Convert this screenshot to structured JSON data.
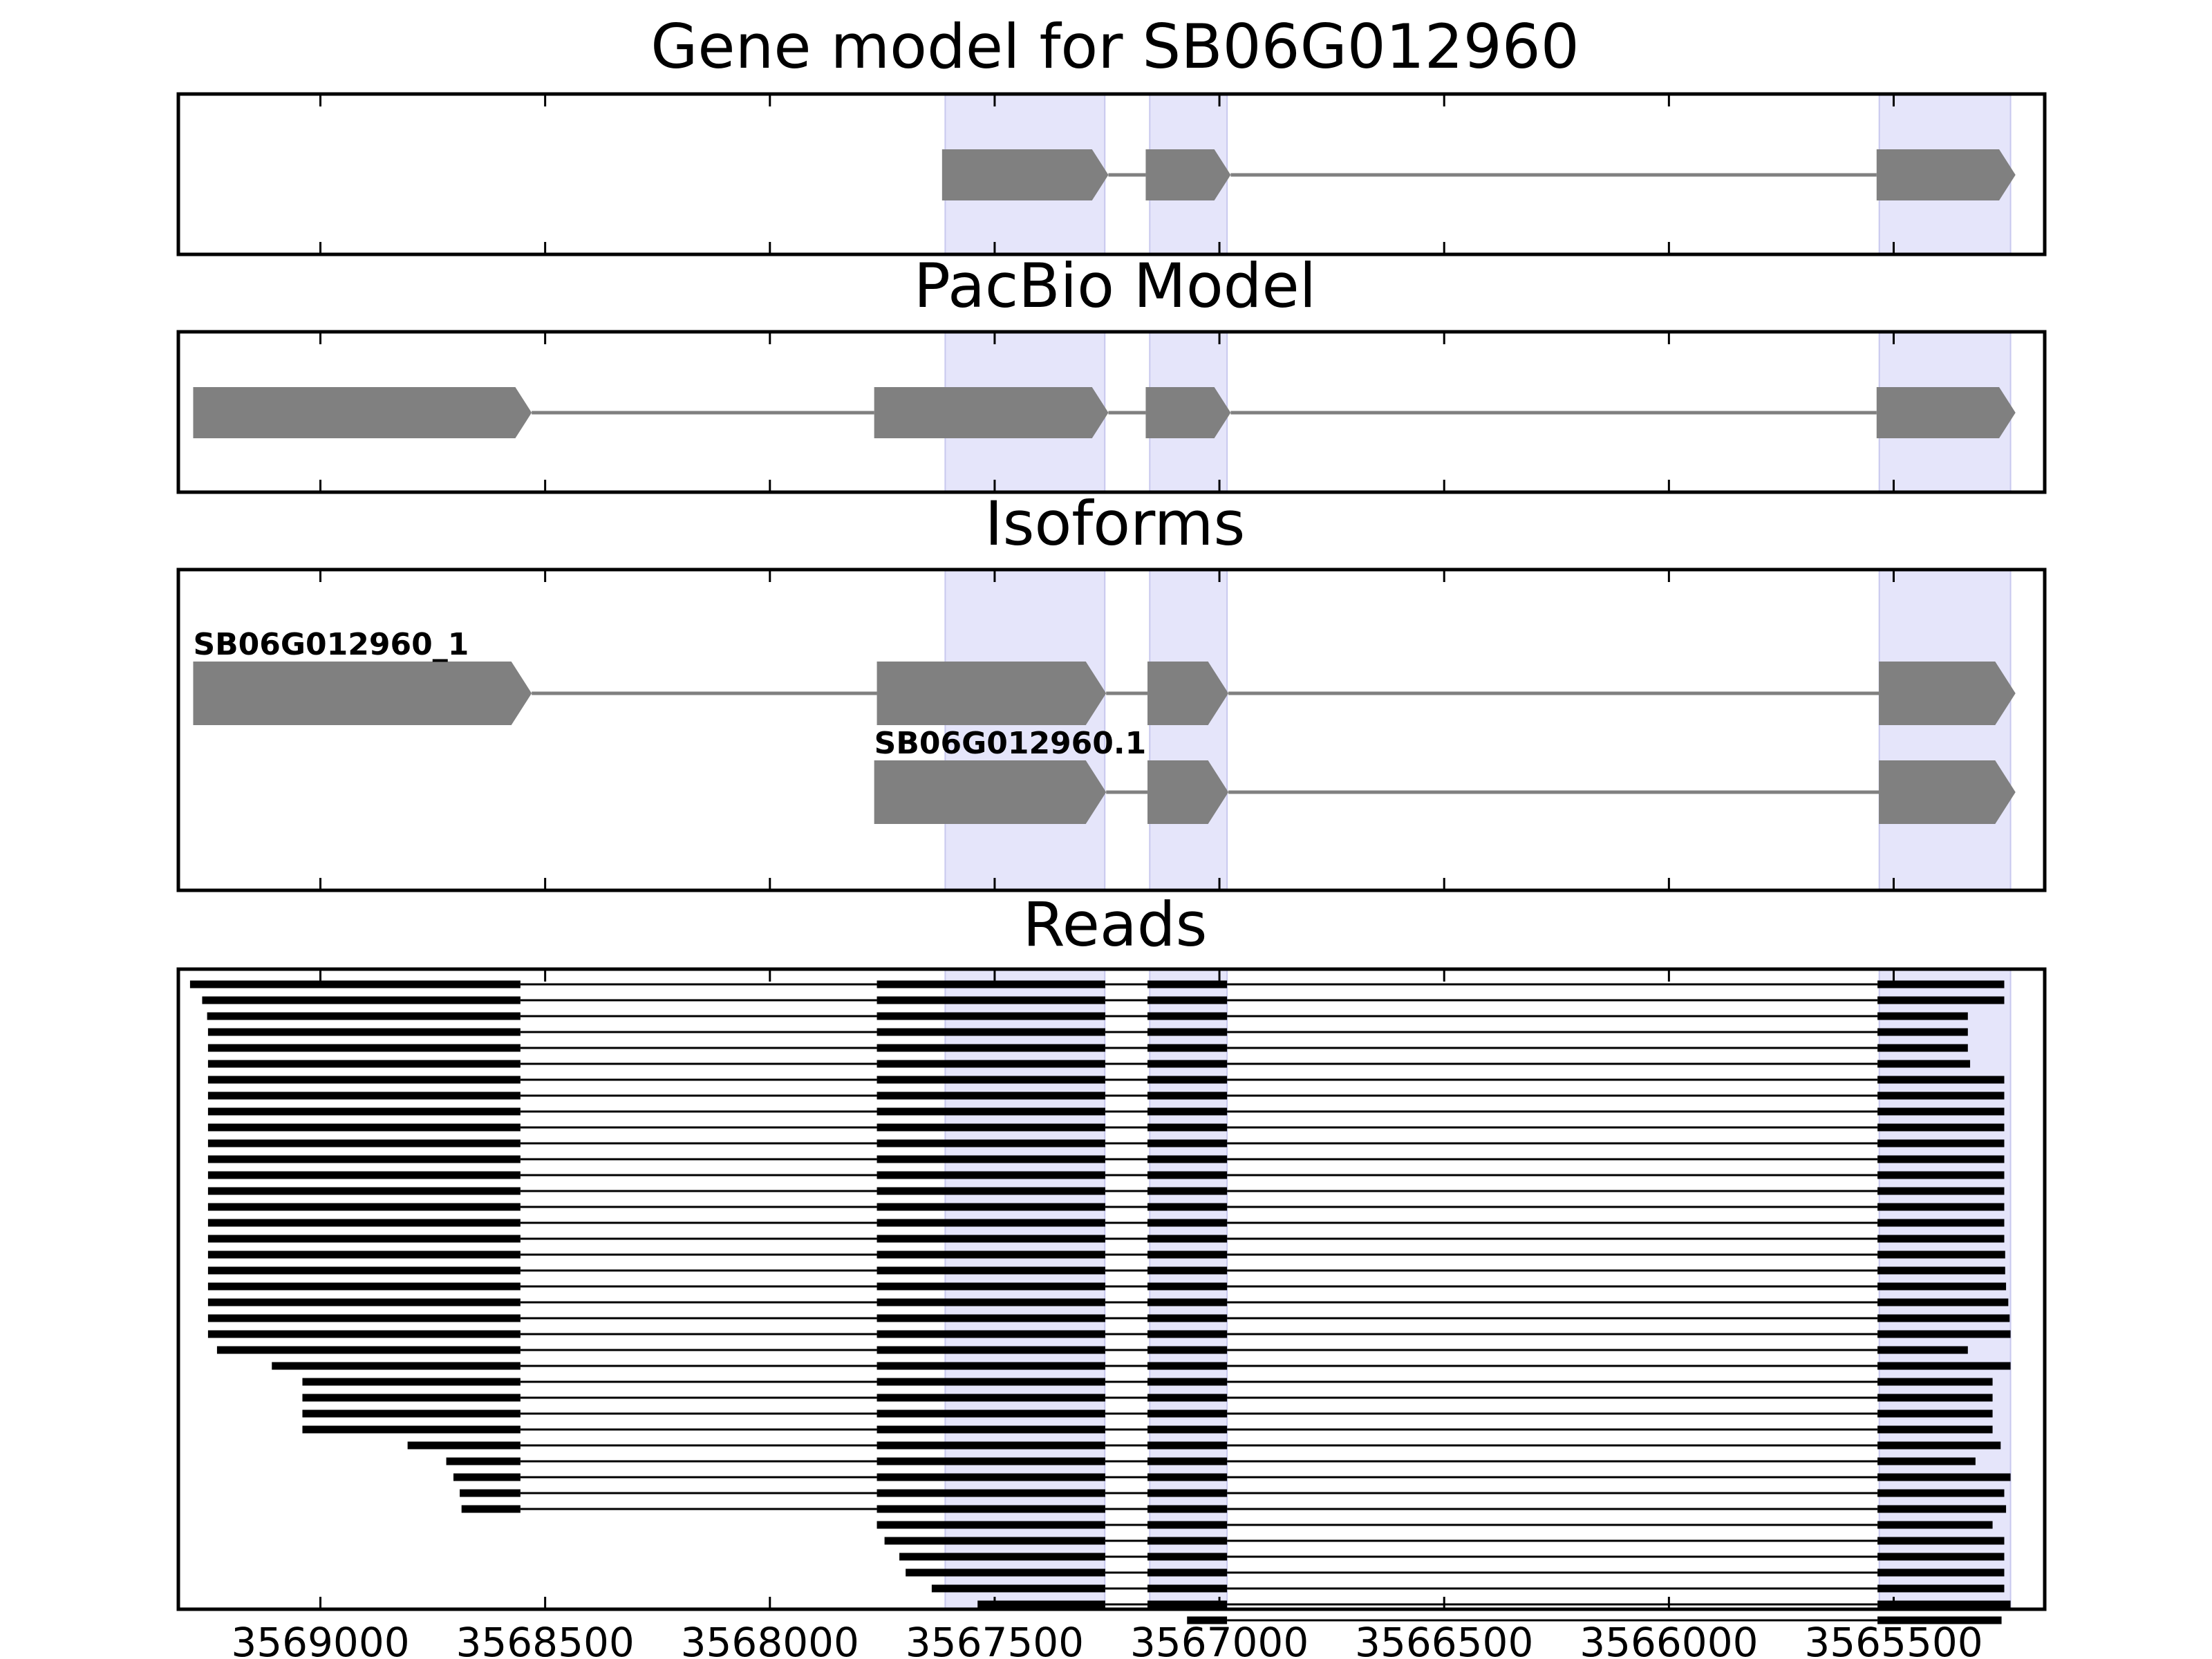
{
  "chart_data": {
    "type": "gene-track",
    "x_reversed": true,
    "xlim": [
      3569316,
      3565164
    ],
    "xticks": [
      3569000,
      3568500,
      3568000,
      3567500,
      3567000,
      3566500,
      3566000,
      3565500
    ],
    "xtick_labels": [
      "3569000",
      "3568500",
      "3568000",
      "3567500",
      "3567000",
      "3566500",
      "3566000",
      "3565500"
    ],
    "highlight_color": "#e5e5fa",
    "highlight_border": "#c8c8ee",
    "feature_color": "#808080",
    "read_color": "#000000",
    "highlights": [
      [
        3567610,
        3567255
      ],
      [
        3567155,
        3566983
      ],
      [
        3565532,
        3565240
      ]
    ],
    "panels": [
      {
        "title": "Gene model for SB06G012960",
        "tracks": [
          {
            "label": "",
            "exons": [
              [
                3567617,
                3567247
              ],
              [
                3567164,
                3566975
              ],
              [
                3565538,
                3565229
              ]
            ]
          }
        ]
      },
      {
        "title": "PacBio Model",
        "tracks": [
          {
            "label": "",
            "exons": [
              [
                3569283,
                3568530
              ],
              [
                3567768,
                3567247
              ],
              [
                3567164,
                3566975
              ],
              [
                3565538,
                3565229
              ]
            ]
          }
        ]
      },
      {
        "title": "Isoforms",
        "tracks": [
          {
            "label": "SB06G012960_1",
            "exons": [
              [
                3569283,
                3568530
              ],
              [
                3567762,
                3567252
              ],
              [
                3567160,
                3566980
              ],
              [
                3565533,
                3565229
              ]
            ]
          },
          {
            "label": "SB06G012960.1",
            "exons": [
              [
                3567768,
                3567252
              ],
              [
                3567160,
                3566980
              ],
              [
                3565533,
                3565229
              ]
            ]
          }
        ]
      },
      {
        "title": "Reads",
        "reads": [
          [
            [
              3569290,
              3568555
            ],
            [
              3567762,
              3567254
            ],
            [
              3567160,
              3566983
            ],
            [
              3565536,
              3565254
            ]
          ],
          [
            [
              3569263,
              3568555
            ],
            [
              3567762,
              3567254
            ],
            [
              3567160,
              3566983
            ],
            [
              3565536,
              3565254
            ]
          ],
          [
            [
              3569252,
              3568555
            ],
            [
              3567762,
              3567254
            ],
            [
              3567160,
              3566983
            ],
            [
              3565536,
              3565335
            ]
          ],
          [
            [
              3569250,
              3568555
            ],
            [
              3567762,
              3567254
            ],
            [
              3567160,
              3566983
            ],
            [
              3565536,
              3565335
            ]
          ],
          [
            [
              3569250,
              3568555
            ],
            [
              3567762,
              3567254
            ],
            [
              3567160,
              3566983
            ],
            [
              3565536,
              3565335
            ]
          ],
          [
            [
              3569250,
              3568555
            ],
            [
              3567762,
              3567254
            ],
            [
              3567160,
              3566983
            ],
            [
              3565536,
              3565330
            ]
          ],
          [
            [
              3569250,
              3568555
            ],
            [
              3567762,
              3567254
            ],
            [
              3567160,
              3566983
            ],
            [
              3565536,
              3565254
            ]
          ],
          [
            [
              3569250,
              3568555
            ],
            [
              3567762,
              3567254
            ],
            [
              3567160,
              3566983
            ],
            [
              3565536,
              3565254
            ]
          ],
          [
            [
              3569250,
              3568555
            ],
            [
              3567762,
              3567254
            ],
            [
              3567160,
              3566983
            ],
            [
              3565536,
              3565254
            ]
          ],
          [
            [
              3569250,
              3568555
            ],
            [
              3567762,
              3567254
            ],
            [
              3567160,
              3566983
            ],
            [
              3565536,
              3565254
            ]
          ],
          [
            [
              3569250,
              3568555
            ],
            [
              3567762,
              3567254
            ],
            [
              3567160,
              3566983
            ],
            [
              3565536,
              3565254
            ]
          ],
          [
            [
              3569250,
              3568555
            ],
            [
              3567762,
              3567254
            ],
            [
              3567160,
              3566983
            ],
            [
              3565536,
              3565254
            ]
          ],
          [
            [
              3569250,
              3568555
            ],
            [
              3567762,
              3567254
            ],
            [
              3567160,
              3566983
            ],
            [
              3565536,
              3565254
            ]
          ],
          [
            [
              3569250,
              3568555
            ],
            [
              3567762,
              3567254
            ],
            [
              3567160,
              3566983
            ],
            [
              3565536,
              3565254
            ]
          ],
          [
            [
              3569250,
              3568555
            ],
            [
              3567762,
              3567254
            ],
            [
              3567160,
              3566983
            ],
            [
              3565536,
              3565254
            ]
          ],
          [
            [
              3569250,
              3568555
            ],
            [
              3567762,
              3567254
            ],
            [
              3567160,
              3566983
            ],
            [
              3565536,
              3565254
            ]
          ],
          [
            [
              3569250,
              3568555
            ],
            [
              3567762,
              3567254
            ],
            [
              3567160,
              3566983
            ],
            [
              3565536,
              3565254
            ]
          ],
          [
            [
              3569250,
              3568555
            ],
            [
              3567762,
              3567254
            ],
            [
              3567160,
              3566983
            ],
            [
              3565536,
              3565252
            ]
          ],
          [
            [
              3569250,
              3568555
            ],
            [
              3567762,
              3567254
            ],
            [
              3567160,
              3566983
            ],
            [
              3565536,
              3565252
            ]
          ],
          [
            [
              3569250,
              3568555
            ],
            [
              3567762,
              3567254
            ],
            [
              3567160,
              3566983
            ],
            [
              3565536,
              3565250
            ]
          ],
          [
            [
              3569250,
              3568555
            ],
            [
              3567762,
              3567254
            ],
            [
              3567160,
              3566983
            ],
            [
              3565536,
              3565245
            ]
          ],
          [
            [
              3569250,
              3568555
            ],
            [
              3567762,
              3567254
            ],
            [
              3567160,
              3566983
            ],
            [
              3565536,
              3565242
            ]
          ],
          [
            [
              3569250,
              3568555
            ],
            [
              3567762,
              3567254
            ],
            [
              3567160,
              3566983
            ],
            [
              3565536,
              3565240
            ]
          ],
          [
            [
              3569230,
              3568555
            ],
            [
              3567762,
              3567254
            ],
            [
              3567160,
              3566983
            ],
            [
              3565536,
              3565335
            ]
          ],
          [
            [
              3569108,
              3568555
            ],
            [
              3567762,
              3567254
            ],
            [
              3567160,
              3566983
            ],
            [
              3565536,
              3565240
            ]
          ],
          [
            [
              3569040,
              3568555
            ],
            [
              3567762,
              3567254
            ],
            [
              3567160,
              3566983
            ],
            [
              3565536,
              3565280
            ]
          ],
          [
            [
              3569040,
              3568555
            ],
            [
              3567762,
              3567254
            ],
            [
              3567160,
              3566983
            ],
            [
              3565536,
              3565280
            ]
          ],
          [
            [
              3569040,
              3568555
            ],
            [
              3567762,
              3567254
            ],
            [
              3567160,
              3566983
            ],
            [
              3565536,
              3565280
            ]
          ],
          [
            [
              3569040,
              3568555
            ],
            [
              3567762,
              3567254
            ],
            [
              3567160,
              3566983
            ],
            [
              3565536,
              3565280
            ]
          ],
          [
            [
              3568806,
              3568555
            ],
            [
              3567762,
              3567254
            ],
            [
              3567160,
              3566983
            ],
            [
              3565536,
              3565262
            ]
          ],
          [
            [
              3568720,
              3568555
            ],
            [
              3567762,
              3567254
            ],
            [
              3567160,
              3566983
            ],
            [
              3565536,
              3565318
            ]
          ],
          [
            [
              3568704,
              3568555
            ],
            [
              3567762,
              3567254
            ],
            [
              3567160,
              3566983
            ],
            [
              3565536,
              3565240
            ]
          ],
          [
            [
              3568690,
              3568555
            ],
            [
              3567762,
              3567254
            ],
            [
              3567160,
              3566983
            ],
            [
              3565536,
              3565254
            ]
          ],
          [
            [
              3568686,
              3568555
            ],
            [
              3567762,
              3567254
            ],
            [
              3567160,
              3566983
            ],
            [
              3565536,
              3565250
            ]
          ],
          [
            [
              3567762,
              3567254
            ],
            [
              3567160,
              3566983
            ],
            [
              3565536,
              3565280
            ]
          ],
          [
            [
              3567745,
              3567254
            ],
            [
              3567160,
              3566983
            ],
            [
              3565536,
              3565254
            ]
          ],
          [
            [
              3567712,
              3567254
            ],
            [
              3567160,
              3566983
            ],
            [
              3565536,
              3565254
            ]
          ],
          [
            [
              3567698,
              3567254
            ],
            [
              3567160,
              3566983
            ],
            [
              3565536,
              3565254
            ]
          ],
          [
            [
              3567640,
              3567254
            ],
            [
              3567160,
              3566983
            ],
            [
              3565536,
              3565254
            ]
          ],
          [
            [
              3567538,
              3567254
            ],
            [
              3567160,
              3566983
            ],
            [
              3565536,
              3565240
            ]
          ],
          [
            [
              3567072,
              3566983
            ],
            [
              3565536,
              3565260
            ]
          ]
        ]
      }
    ]
  }
}
